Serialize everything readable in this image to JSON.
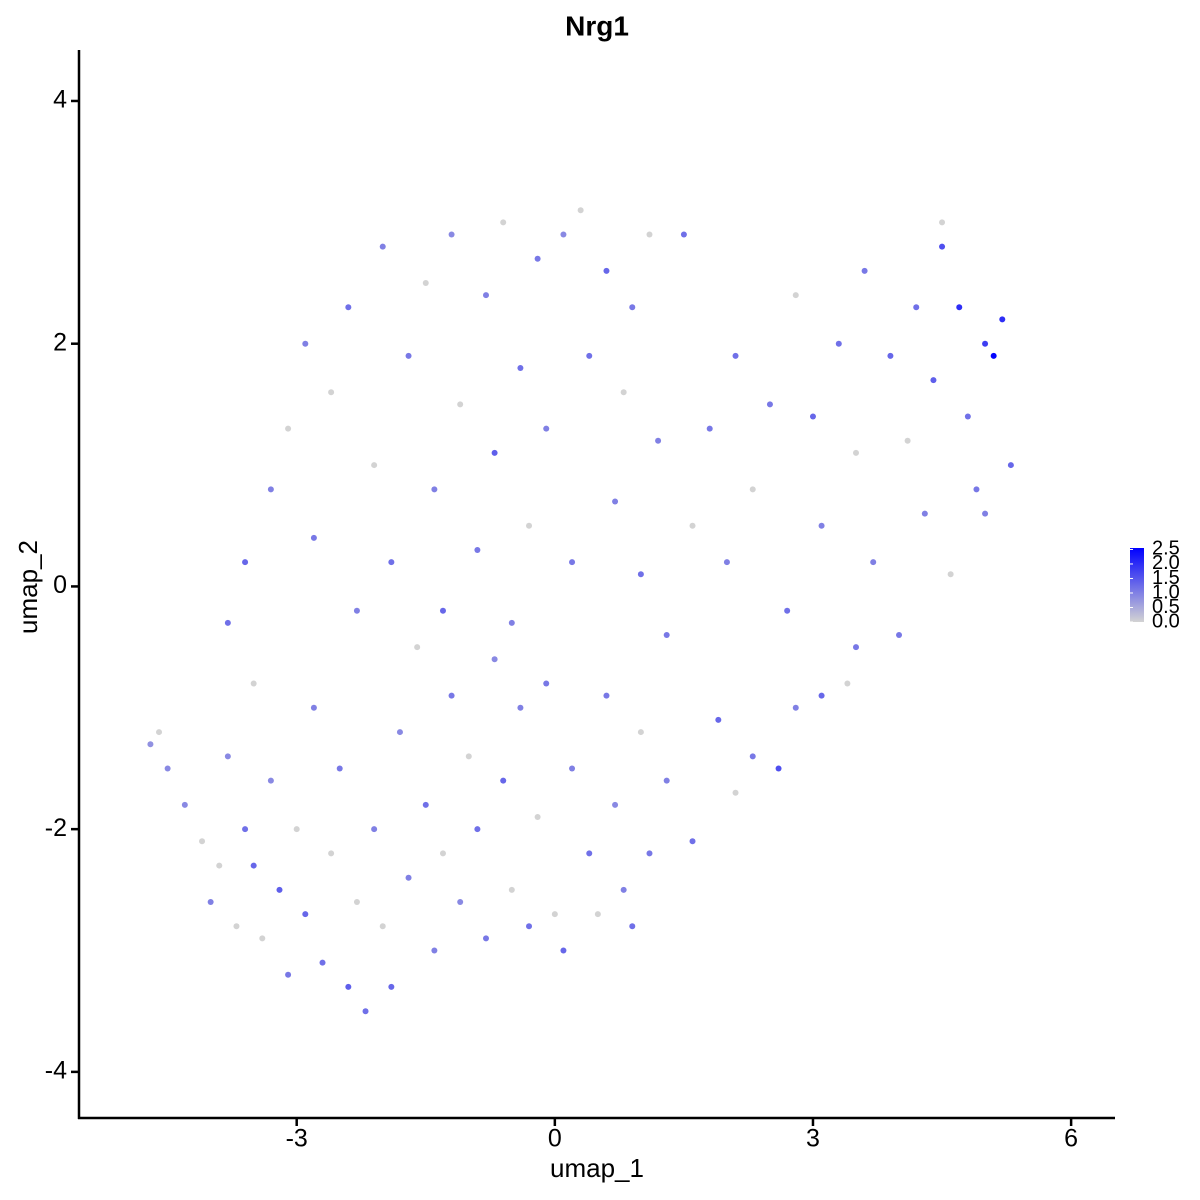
{
  "chart_data": {
    "type": "scatter",
    "title": "Nrg1",
    "x_label": "umap_1",
    "y_label": "umap_2",
    "xlim": [
      -5.53,
      6.51
    ],
    "ylim": [
      -4.38,
      4.42
    ],
    "xticks": [
      -3,
      0,
      3,
      6
    ],
    "yticks": [
      -4,
      -2,
      0,
      2,
      4
    ],
    "low_color": "#d3d3d3",
    "high_color": "#0000ff",
    "colorbar_lim": [
      0,
      2.55
    ],
    "colorbar_ticks": [
      {
        "value": 0,
        "label": "0.0"
      },
      0.5,
      {
        "value": 1,
        "label": "1.0"
      },
      1.5,
      {
        "value": 2,
        "label": "2.0"
      },
      2.5
    ],
    "x": [
      -4.7,
      -4.6,
      -4.5,
      -4.3,
      -4.1,
      -4.0,
      -3.9,
      -3.8,
      -3.7,
      -3.6,
      -3.5,
      -3.4,
      -3.3,
      -3.2,
      -3.1,
      -3.0,
      -2.9,
      -2.8,
      -2.7,
      -2.6,
      -2.5,
      -2.4,
      -2.3,
      -2.2,
      -2.1,
      -2.0,
      -1.9,
      -1.8,
      -1.7,
      -1.6,
      -1.5,
      -1.4,
      -1.3,
      -1.2,
      -1.1,
      -1.0,
      -0.9,
      -0.8,
      -0.7,
      -0.6,
      -0.5,
      -0.4,
      -0.3,
      -0.2,
      -0.1,
      0.0,
      0.1,
      0.2,
      0.4,
      0.5,
      0.6,
      0.7,
      0.8,
      0.9,
      1.0,
      1.1,
      1.3,
      1.6,
      1.9,
      2.1,
      2.3,
      2.6,
      2.8,
      3.1,
      3.4,
      3.5,
      -3.8,
      -3.6,
      -3.5,
      -3.3,
      -3.1,
      -2.9,
      -2.8,
      -2.6,
      -2.4,
      -2.3,
      -2.1,
      -2.0,
      -1.9,
      -1.7,
      -1.5,
      -1.4,
      -1.3,
      -1.2,
      -1.1,
      -0.9,
      -0.8,
      -0.7,
      -0.6,
      -0.5,
      -0.4,
      -0.3,
      -0.2,
      -0.1,
      0.1,
      0.2,
      0.3,
      0.4,
      0.6,
      0.7,
      0.8,
      0.9,
      1.0,
      1.1,
      1.2,
      1.3,
      1.5,
      1.6,
      1.8,
      2.0,
      2.1,
      2.3,
      2.5,
      2.7,
      2.8,
      3.0,
      3.1,
      3.3,
      3.5,
      3.6,
      3.7,
      3.9,
      4.0,
      4.1,
      4.2,
      4.3,
      4.4,
      4.5,
      4.6,
      4.7,
      4.8,
      4.9,
      5.0,
      5.1,
      5.2,
      5.3,
      4.5,
      5.0
    ],
    "y": [
      -1.3,
      -1.2,
      -1.5,
      -1.8,
      -2.1,
      -2.6,
      -2.3,
      -1.4,
      -2.8,
      -2.0,
      -2.3,
      -2.9,
      -1.6,
      -2.5,
      -3.2,
      -2.0,
      -2.7,
      -1.0,
      -3.1,
      -2.2,
      -1.5,
      -3.3,
      -2.6,
      -3.5,
      -2.0,
      -2.8,
      -3.3,
      -1.2,
      -2.4,
      -0.5,
      -1.8,
      -3.0,
      -2.2,
      -0.9,
      -2.6,
      -1.4,
      -2.0,
      -2.9,
      -0.6,
      -1.6,
      -2.5,
      -1.0,
      -2.8,
      -1.9,
      -0.8,
      -2.7,
      -3.0,
      -1.5,
      -2.2,
      -2.7,
      -0.9,
      -1.8,
      -2.5,
      -2.8,
      -1.2,
      -2.2,
      -1.6,
      -2.1,
      -1.1,
      -1.7,
      -1.4,
      -1.5,
      -1.0,
      -0.9,
      -0.8,
      -0.5,
      -0.3,
      0.2,
      -0.8,
      0.8,
      1.3,
      2.0,
      0.4,
      1.6,
      2.3,
      -0.2,
      1.0,
      2.8,
      0.2,
      1.9,
      2.5,
      0.8,
      -0.2,
      2.9,
      1.5,
      0.3,
      2.4,
      1.1,
      3.0,
      -0.3,
      1.8,
      0.5,
      2.7,
      1.3,
      2.9,
      0.2,
      3.1,
      1.9,
      2.6,
      0.7,
      1.6,
      2.3,
      0.1,
      2.9,
      1.2,
      -0.4,
      2.9,
      0.5,
      1.3,
      0.2,
      1.9,
      0.8,
      1.5,
      -0.2,
      2.4,
      1.4,
      0.5,
      2.0,
      1.1,
      2.6,
      0.2,
      1.9,
      -0.4,
      1.2,
      2.3,
      0.6,
      1.7,
      2.8,
      0.1,
      2.3,
      1.4,
      0.8,
      2.0,
      1.9,
      2.2,
      1.0,
      3.0,
      0.6
    ],
    "values": [
      0.8,
      0,
      0.9,
      0.9,
      0,
      1.0,
      0,
      0.9,
      0,
      1.2,
      1.3,
      0,
      0.9,
      1.4,
      1.1,
      0,
      1.3,
      1.0,
      1.2,
      0,
      1.1,
      1.4,
      0,
      1.2,
      1.0,
      0,
      1.3,
      0.9,
      1.0,
      0,
      1.2,
      1.0,
      0,
      1.1,
      0.9,
      0,
      1.2,
      1.1,
      0.9,
      1.3,
      0,
      1.0,
      1.2,
      0,
      1.1,
      0,
      1.3,
      1.0,
      1.2,
      0,
      1.1,
      0.9,
      1.0,
      1.2,
      0,
      1.1,
      1.0,
      1.2,
      1.3,
      0,
      1.1,
      1.6,
      1.0,
      1.3,
      0,
      1.1,
      1.2,
      1.3,
      0,
      1.0,
      0,
      1.0,
      1.1,
      0,
      1.2,
      1.0,
      0,
      1.0,
      1.2,
      1.1,
      0,
      1.0,
      1.3,
      0.9,
      0,
      1.1,
      1.0,
      1.4,
      0,
      1.0,
      1.2,
      0,
      1.1,
      1.0,
      0.9,
      1.1,
      0,
      1.2,
      1.3,
      1.0,
      0,
      1.1,
      1.2,
      0,
      1.0,
      1.1,
      1.2,
      0,
      1.1,
      1.0,
      1.2,
      0,
      1.1,
      1.2,
      0,
      1.3,
      1.0,
      1.2,
      0,
      1.1,
      1.0,
      1.3,
      1.1,
      0,
      1.2,
      1.0,
      1.4,
      1.6,
      0,
      2.0,
      1.2,
      1.1,
      1.8,
      2.5,
      2.0,
      1.3,
      0,
      1.0
    ]
  }
}
